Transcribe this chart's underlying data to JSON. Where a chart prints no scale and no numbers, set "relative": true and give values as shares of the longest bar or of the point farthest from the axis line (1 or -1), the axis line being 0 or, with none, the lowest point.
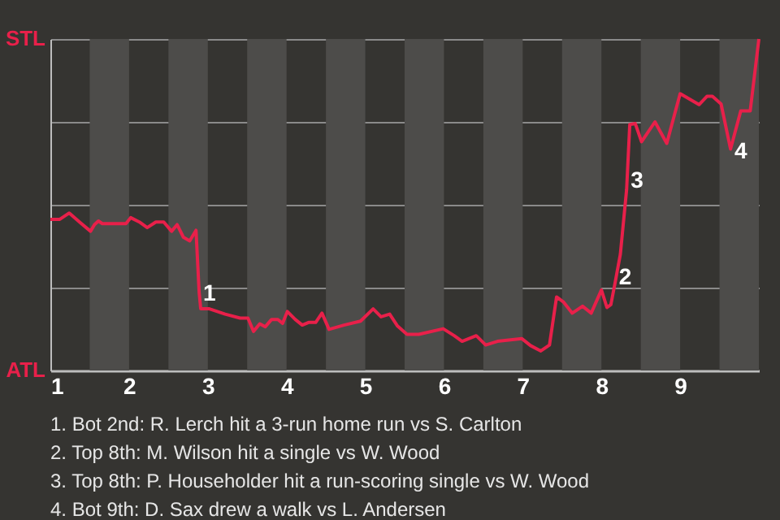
{
  "chart_data": {
    "type": "line",
    "relative": true,
    "grid": "y",
    "xlim": [
      1,
      10
    ],
    "xticks": [
      1,
      2,
      3,
      4,
      5,
      6,
      7,
      8,
      9
    ],
    "bands": [
      {
        "axis": "x",
        "from": 1.5,
        "to": 2,
        "color": "#4d4c4a"
      },
      {
        "axis": "x",
        "from": 2.5,
        "to": 3,
        "color": "#4d4c4a"
      },
      {
        "axis": "x",
        "from": 3.5,
        "to": 4,
        "color": "#4d4c4a"
      },
      {
        "axis": "x",
        "from": 4.5,
        "to": 5,
        "color": "#4d4c4a"
      },
      {
        "axis": "x",
        "from": 5.5,
        "to": 6,
        "color": "#4d4c4a"
      },
      {
        "axis": "x",
        "from": 6.5,
        "to": 7,
        "color": "#4d4c4a"
      },
      {
        "axis": "x",
        "from": 7.5,
        "to": 8,
        "color": "#4d4c4a"
      },
      {
        "axis": "x",
        "from": 8.5,
        "to": 9,
        "color": "#4d4c4a"
      },
      {
        "axis": "x",
        "from": 9.5,
        "to": 10,
        "color": "#4d4c4a"
      }
    ],
    "series": [
      {
        "color": "#e8204a",
        "x": [
          1.0,
          1.12,
          1.24,
          1.37,
          1.51,
          1.56,
          1.61,
          1.66,
          1.96,
          2.02,
          2.13,
          2.23,
          2.34,
          2.44,
          2.54,
          2.61,
          2.69,
          2.77,
          2.85,
          2.89,
          2.91,
          3.02,
          3.22,
          3.41,
          3.51,
          3.58,
          3.66,
          3.73,
          3.81,
          3.89,
          3.95,
          4.01,
          4.11,
          4.2,
          4.28,
          4.37,
          4.45,
          4.54,
          4.73,
          4.94,
          5.1,
          5.2,
          5.31,
          5.41,
          5.53,
          5.68,
          5.99,
          6.13,
          6.23,
          6.41,
          6.53,
          6.68,
          6.99,
          7.1,
          7.23,
          7.34,
          7.43,
          7.52,
          7.63,
          7.76,
          7.87,
          8.0,
          8.07,
          8.12,
          8.17,
          8.24,
          8.32,
          8.36,
          8.43,
          8.51,
          8.68,
          8.83,
          9.0,
          9.24,
          9.34,
          9.41,
          9.52,
          9.64,
          9.77,
          9.89,
          10.0
        ],
        "values": [
          0.456,
          0.456,
          0.475,
          0.448,
          0.42,
          0.44,
          0.451,
          0.443,
          0.443,
          0.461,
          0.448,
          0.431,
          0.448,
          0.448,
          0.42,
          0.44,
          0.402,
          0.391,
          0.423,
          0.235,
          0.186,
          0.186,
          0.17,
          0.158,
          0.158,
          0.118,
          0.141,
          0.132,
          0.154,
          0.154,
          0.142,
          0.178,
          0.154,
          0.137,
          0.145,
          0.145,
          0.173,
          0.124,
          0.137,
          0.149,
          0.186,
          0.162,
          0.17,
          0.134,
          0.109,
          0.109,
          0.126,
          0.105,
          0.088,
          0.105,
          0.077,
          0.088,
          0.096,
          0.075,
          0.059,
          0.077,
          0.222,
          0.206,
          0.173,
          0.194,
          0.173,
          0.243,
          0.19,
          0.199,
          0.26,
          0.35,
          0.546,
          0.742,
          0.745,
          0.69,
          0.75,
          0.685,
          0.835,
          0.802,
          0.827,
          0.827,
          0.804,
          0.668,
          0.783,
          0.783,
          1.0
        ]
      }
    ],
    "annotations": [
      "STL",
      "ATL",
      {
        "text": "1",
        "x": 2.9,
        "y": 0.23
      },
      {
        "text": "2",
        "x": 8.18,
        "y": 0.28
      },
      {
        "text": "3",
        "x": 8.33,
        "y": 0.57
      },
      {
        "text": "4",
        "x": 9.65,
        "y": 0.66
      },
      "1. Bot 2nd: R. Lerch hit a 3-run home run vs S. Carlton",
      "2. Top 8th: M. Wilson hit a single vs W. Wood",
      "3. Top 8th: P. Householder hit a run-scoring single vs W. Wood",
      "4. Bot 9th: D. Sax drew a walk vs L. Andersen"
    ]
  }
}
